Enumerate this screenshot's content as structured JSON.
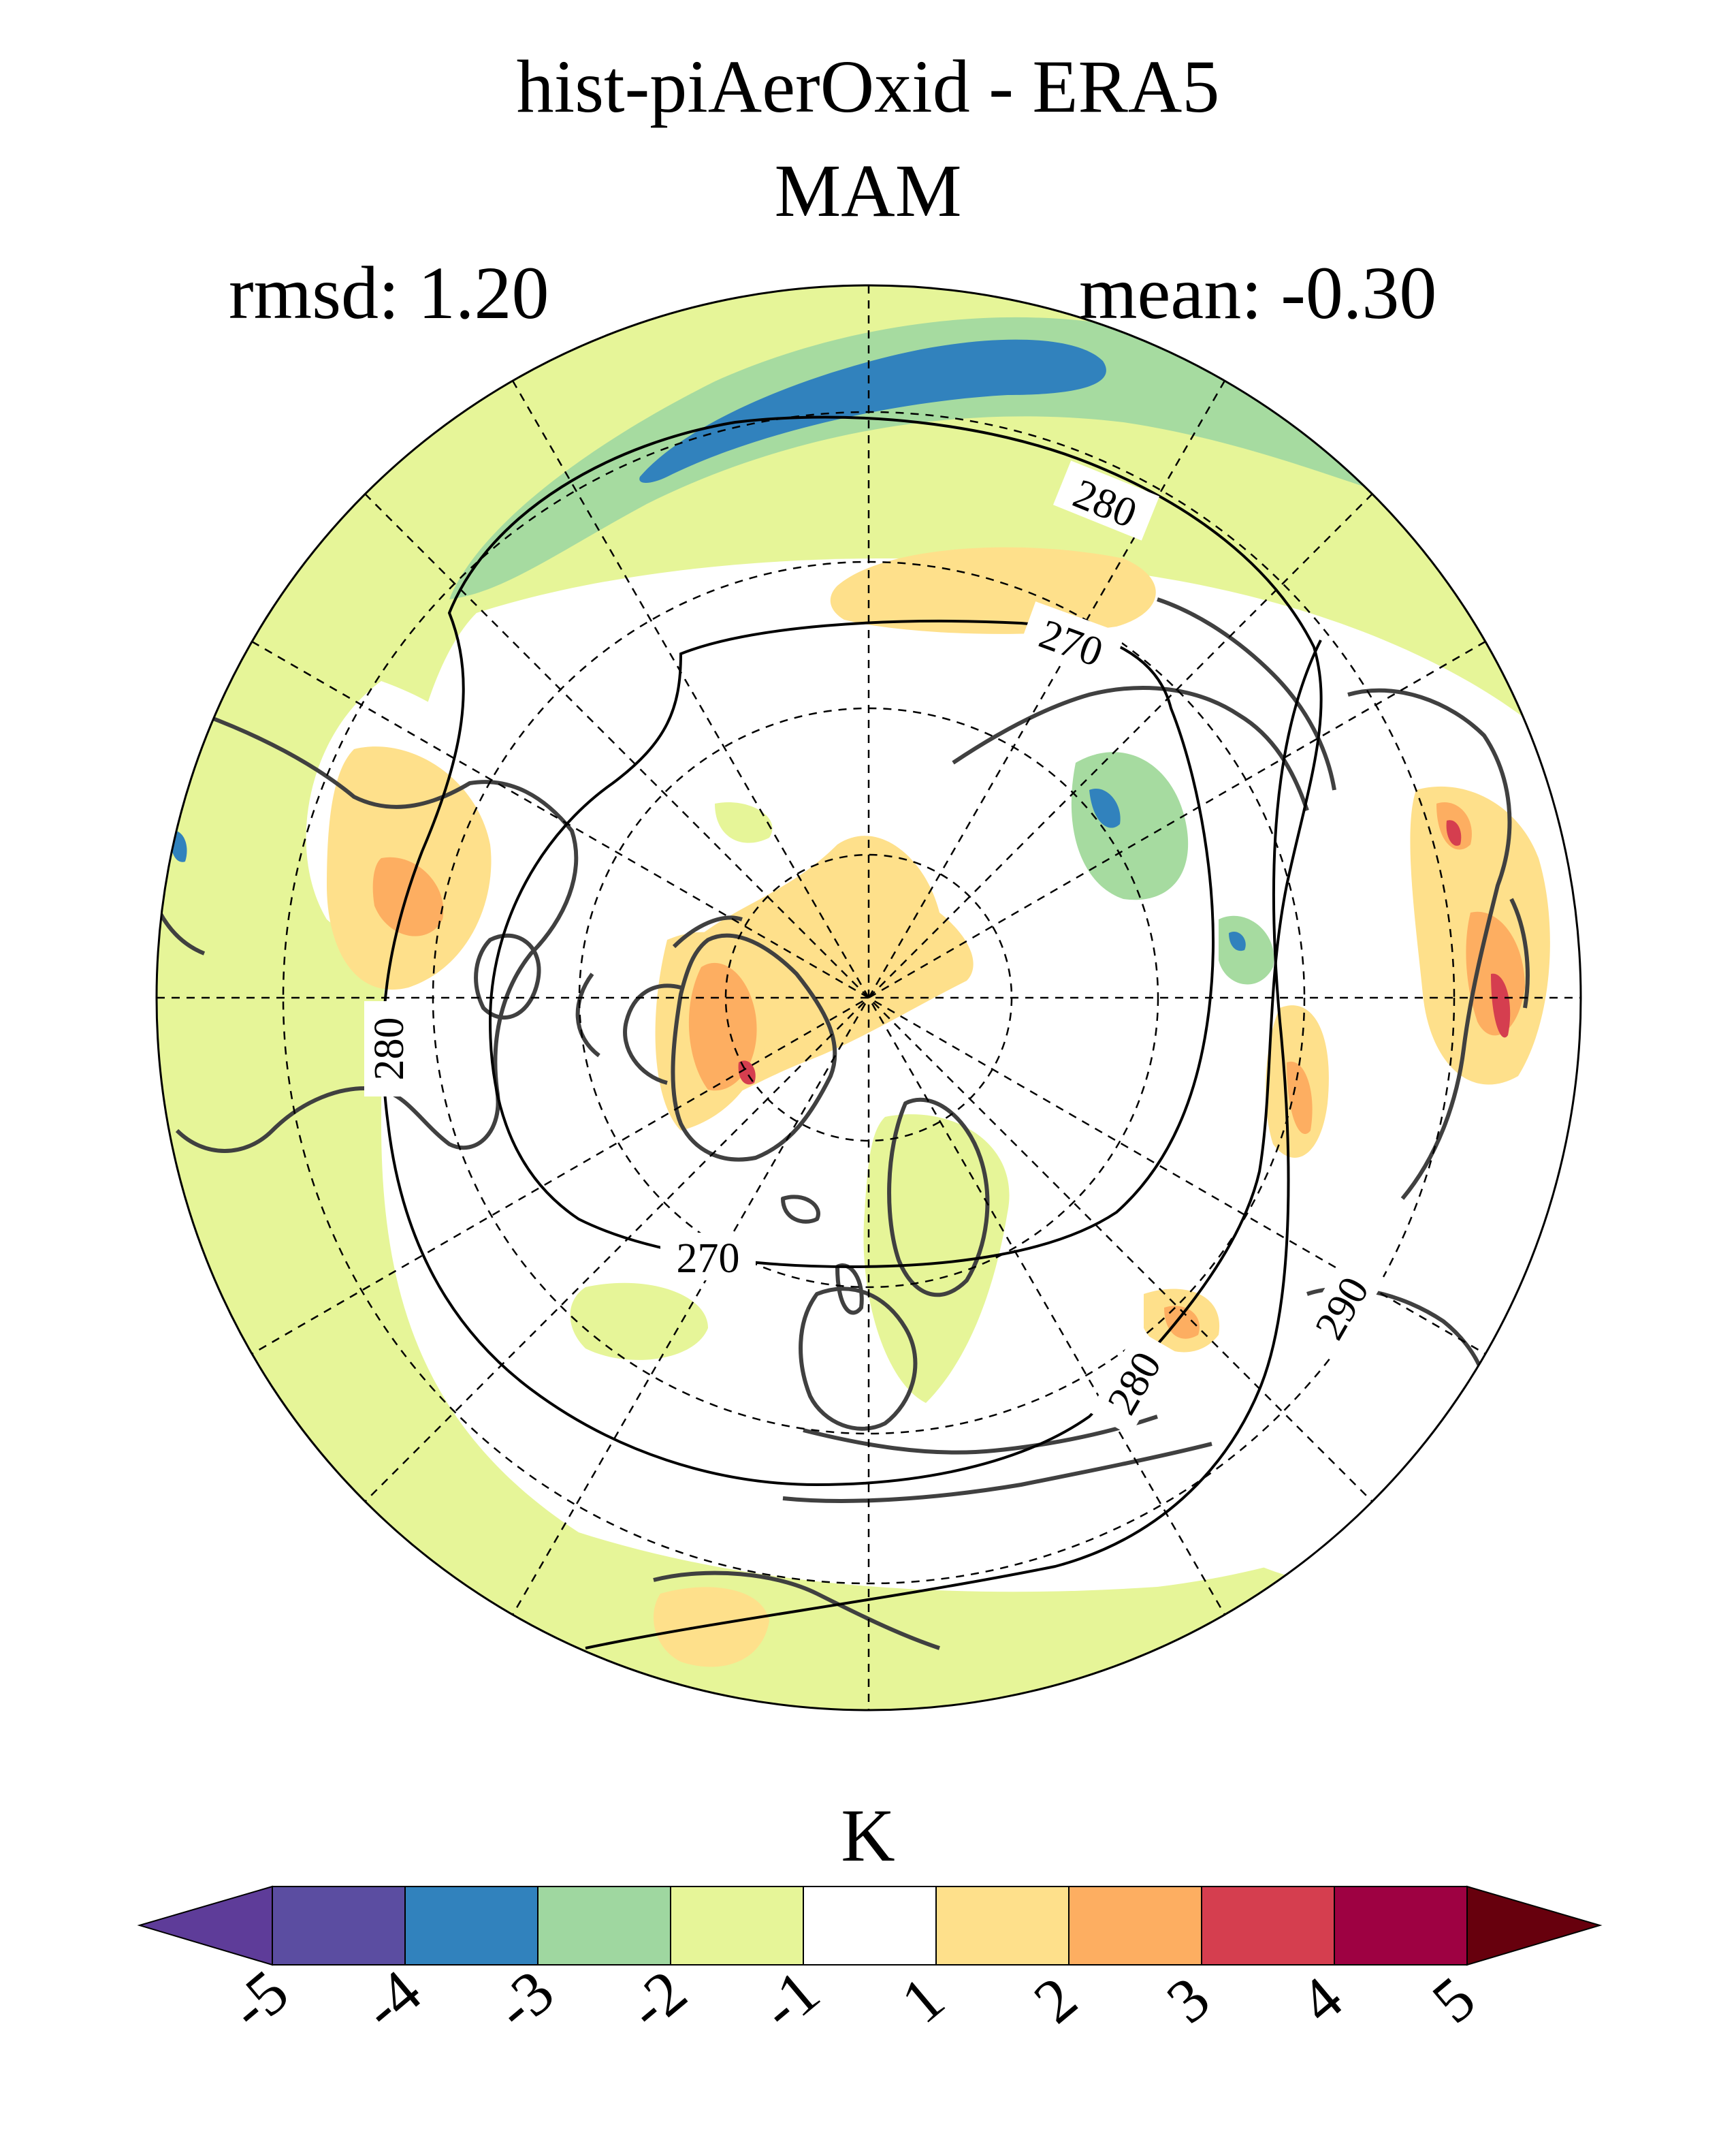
{
  "header": {
    "title": "hist-piAerOxid - ERA5",
    "season": "MAM",
    "rmsd_text": "rmsd: 1.20",
    "mean_text": "mean: -0.30"
  },
  "map": {
    "projection": "north-polar-stereographic",
    "graticule": "dashed",
    "contour_labels": [
      "270",
      "280",
      "290"
    ],
    "land_outline_color": "#404040"
  },
  "colorbar": {
    "units": "K",
    "tick_labels": [
      "-5",
      "-4",
      "-3",
      "-2",
      "-1",
      "1",
      "2",
      "3",
      "4",
      "5"
    ],
    "colors": [
      "#5e3c99",
      "#5b4da1",
      "#3182bd",
      "#9fd7a0",
      "#e6f598",
      "#ffffff",
      "#fee08b",
      "#fdae61",
      "#d53e4f",
      "#9e0142",
      "#67000d"
    ]
  }
}
